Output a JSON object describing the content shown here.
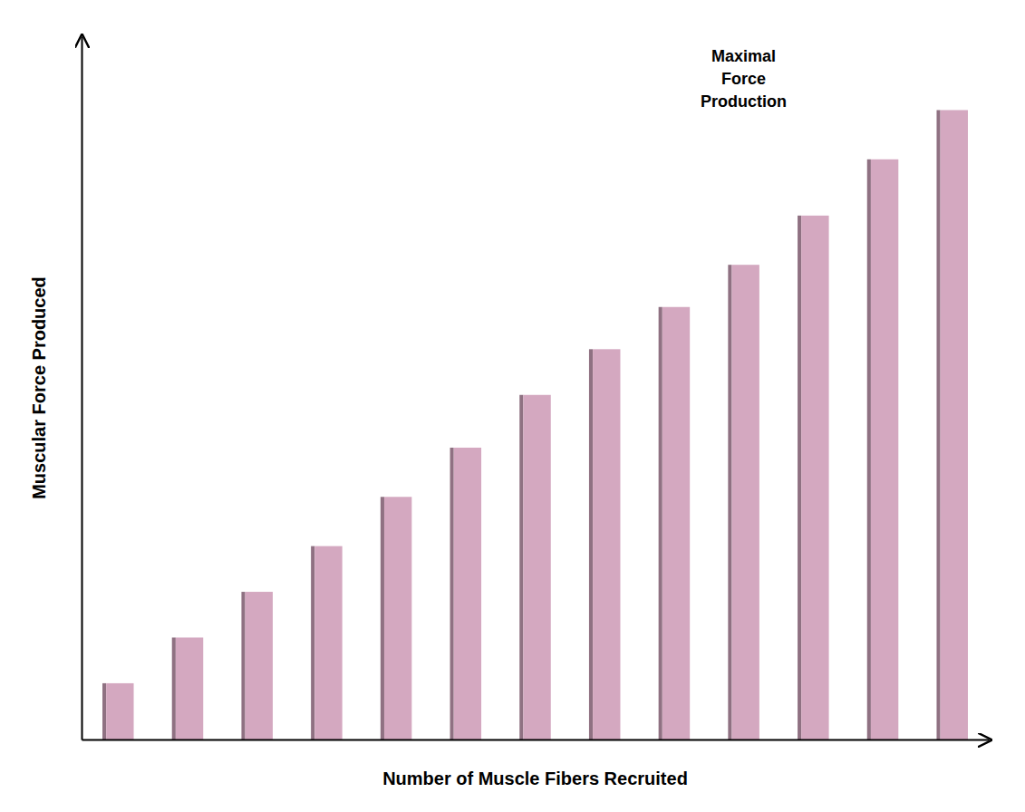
{
  "chart_data": {
    "type": "bar",
    "categories": [
      null,
      null,
      null,
      null,
      null,
      null,
      null,
      null,
      null,
      null,
      null,
      null,
      null
    ],
    "values": [
      0.08,
      0.145,
      0.21,
      0.275,
      0.345,
      0.415,
      0.49,
      0.555,
      0.615,
      0.675,
      0.745,
      0.825,
      0.895
    ],
    "color": "#D4A8C0",
    "xlabel": "Number of Muscle Fibers Recruited",
    "ylabel": "Muscular Force Produced",
    "annotation": "Maximal\nForce\nProduction",
    "ylim": [
      0,
      1.0
    ],
    "grid": false,
    "tick_labels": false
  }
}
